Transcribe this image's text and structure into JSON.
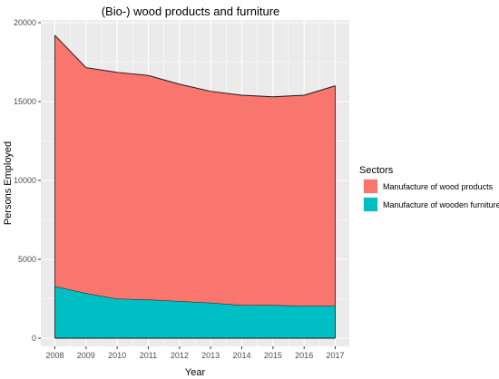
{
  "chart_data": {
    "type": "area",
    "stacked": true,
    "title": "(Bio-) wood products and furniture",
    "xlabel": "Year",
    "ylabel": "Persons Employed",
    "x": [
      2008,
      2009,
      2010,
      2011,
      2012,
      2013,
      2014,
      2015,
      2016,
      2017
    ],
    "xticks": [
      "2008",
      "2009",
      "2010",
      "2011",
      "2012",
      "2013",
      "2014",
      "2015",
      "2016",
      "2017"
    ],
    "ylim": [
      0,
      20000
    ],
    "yticks": [
      "0",
      "5000",
      "10000",
      "15000",
      "20000"
    ],
    "grid": true,
    "legend_position": "right",
    "legend_title": "Sectors",
    "series": [
      {
        "name": "Manufacture of wooden furniture",
        "color": "#00bfc4",
        "values": [
          3300,
          2850,
          2500,
          2450,
          2350,
          2250,
          2100,
          2100,
          2050,
          2050
        ]
      },
      {
        "name": "Manufacture of wood products",
        "color": "#f8766d",
        "values": [
          15900,
          14300,
          14350,
          14200,
          13750,
          13400,
          13300,
          13200,
          13350,
          13950
        ]
      }
    ],
    "legend_order": [
      "Manufacture of wood products",
      "Manufacture of wooden furniture"
    ],
    "panel_color": "#ebebeb",
    "grid_color": "#ffffff"
  }
}
